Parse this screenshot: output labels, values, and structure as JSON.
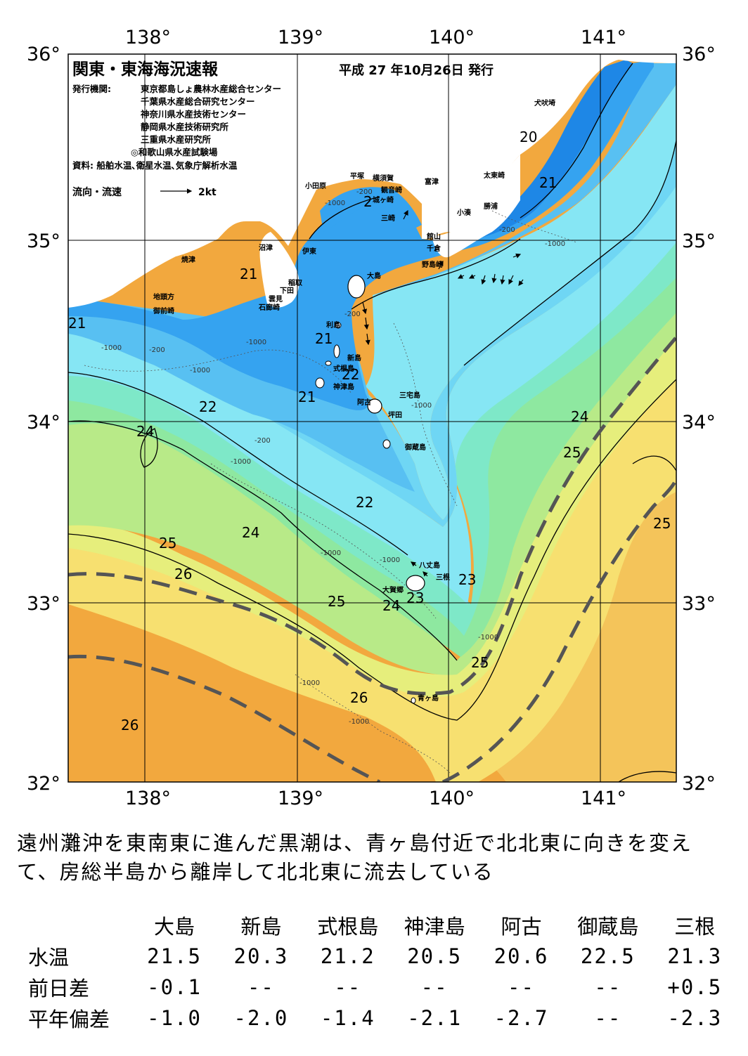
{
  "map": {
    "title": "関東・東海海況速報",
    "issue_date": "平成 27 年10月26日 発行",
    "publisher_label": "発行機関:",
    "publishers": [
      "東京都島しょ農林水産総合センター",
      "千葉県水産総合研究センター",
      "神奈川県水産技術センター",
      "静岡県水産技術研究所",
      "三重県水産研究所",
      "◎和歌山県水産試験場"
    ],
    "sources": "資料: 船舶水温､衛星水温､気象庁解析水温",
    "legend_label": "流向・流速",
    "legend_scale": "2kt",
    "lon_ticks": [
      "138°",
      "139°",
      "140°",
      "141°"
    ],
    "lat_ticks": [
      "36°",
      "35°",
      "34°",
      "33°",
      "32°"
    ],
    "place_names": {
      "inubosaki": "犬吠埼",
      "taito": "太東崎",
      "katsuura": "勝浦",
      "kominato": "小湊",
      "tomitsu": "富津",
      "kannonzaki": "観音崎",
      "yokosuka": "横須賀",
      "hiratsuka": "平塚",
      "odawara": "小田原",
      "jogasaki": "城ヶ崎",
      "misaki": "三崎",
      "tateyama": "館山",
      "chikura": "千倉",
      "nojimazaki": "野島崎",
      "numazu": "沼津",
      "ito": "伊東",
      "yaizu": "焼津",
      "inatori": "稲取",
      "shimoda": "下田",
      "kumomi": "雲見",
      "irozaki": "石廊崎",
      "jitogata": "地頭方",
      "omaezaki": "御前崎",
      "oshima": "大島",
      "toshima": "利島",
      "niijima": "新島",
      "shikinejima": "式根島",
      "kozushima": "神津島",
      "miyakejima": "三宅島",
      "ako": "阿古",
      "tsubota": "坪田",
      "mikurajima": "御蔵島",
      "hachijojima": "八丈島",
      "okago": "大賀郷",
      "mitsune": "三根",
      "aogashima": "青ヶ島"
    },
    "isotherm_labels": [
      "20",
      "21",
      "21",
      "21",
      "21",
      "21",
      "2",
      "22",
      "22",
      "22",
      "22",
      "23",
      "23",
      "24",
      "24",
      "24",
      "24",
      "25",
      "25",
      "25",
      "25",
      "25",
      "26",
      "26",
      "26"
    ],
    "depth_labels": [
      "-200",
      "-1000"
    ],
    "colors": {
      "t20": "#1e87e6",
      "t21": "#35a3f0",
      "t21_5": "#58c0f2",
      "t22": "#6fd6f4",
      "t22_5": "#86e6f4",
      "t23": "#7ee8c8",
      "t23_5": "#8ee8a0",
      "t24": "#b8ea88",
      "t24_5": "#e6ee7c",
      "t25": "#f7e070",
      "t25_5": "#f4c45a",
      "t26": "#f2a83e",
      "land": "#ffffff",
      "kuroshio_axis": "#555555"
    }
  },
  "summary": "遠州灘沖を東南東に進んだ黒潮は、青ヶ島付近で北北東に向きを変えて、房総半島から離岸して北北東に流去している",
  "obs_table": {
    "columns": [
      "大島",
      "新島",
      "式根島",
      "神津島",
      "阿古",
      "御蔵島",
      "三根"
    ],
    "rows": [
      {
        "label": "水温",
        "values": [
          "21.5",
          "20.3",
          "21.2",
          "20.5",
          "20.6",
          "22.5",
          "21.3"
        ]
      },
      {
        "label": "前日差",
        "values": [
          "-0.1",
          "--",
          "--",
          "--",
          "--",
          "--",
          "+0.5"
        ]
      },
      {
        "label": "平年偏差",
        "values": [
          "-1.0",
          "-2.0",
          "-1.4",
          "-2.1",
          "-2.7",
          "--",
          "-2.3"
        ]
      }
    ]
  }
}
